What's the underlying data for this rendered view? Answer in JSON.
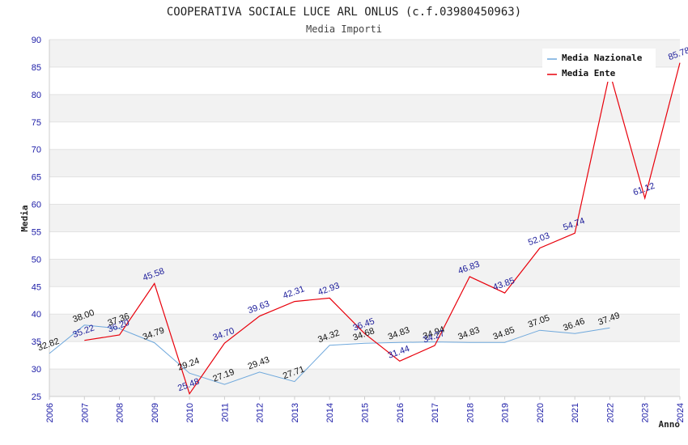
{
  "chart_data": {
    "type": "line",
    "title": "COOPERATIVA SOCIALE LUCE ARL ONLUS (c.f.03980450963)",
    "subtitle": "Media Importi",
    "xlabel": "Anno",
    "ylabel": "Media",
    "ylim": [
      25,
      90
    ],
    "yticks": [
      "25",
      "30",
      "35",
      "40",
      "45",
      "50",
      "55",
      "60",
      "65",
      "70",
      "75",
      "80",
      "85",
      "90"
    ],
    "categories": [
      "2006",
      "2007",
      "2008",
      "2009",
      "2010",
      "2011",
      "2012",
      "2013",
      "2014",
      "2015",
      "2016",
      "2017",
      "2018",
      "2019",
      "2020",
      "2021",
      "2022",
      "2023",
      "2024"
    ],
    "series": [
      {
        "name": "Media Nazionale",
        "color": "#6fa8dc",
        "values": [
          32.82,
          38.0,
          37.36,
          34.79,
          29.24,
          27.19,
          29.43,
          27.71,
          34.32,
          34.68,
          34.83,
          34.94,
          34.83,
          34.85,
          37.05,
          36.46,
          37.49,
          null,
          null
        ],
        "labels": [
          "32.82",
          "38.00",
          "37.36",
          "34.79",
          "29.24",
          "27.19",
          "29.43",
          "27.71",
          "34.32",
          "34.68",
          "34.83",
          "34.94",
          "34.83",
          "34.85",
          "37.05",
          "36.46",
          "37.49",
          "",
          ""
        ]
      },
      {
        "name": "Media Ente",
        "color": "#e8000b",
        "values": [
          null,
          35.22,
          36.2,
          45.58,
          25.48,
          34.7,
          39.63,
          42.31,
          42.93,
          36.45,
          31.44,
          34.27,
          46.83,
          43.85,
          52.03,
          54.74,
          84.0,
          61.12,
          85.78
        ],
        "labels": [
          "",
          "35.22",
          "36.20",
          "45.58",
          "25.48",
          "34.70",
          "39.63",
          "42.31",
          "42.93",
          "36.45",
          "31.44",
          "34.27",
          "46.83",
          "43.85",
          "52.03",
          "54.74",
          "",
          "61.12",
          "85.78"
        ]
      }
    ],
    "legend": "top-right"
  }
}
